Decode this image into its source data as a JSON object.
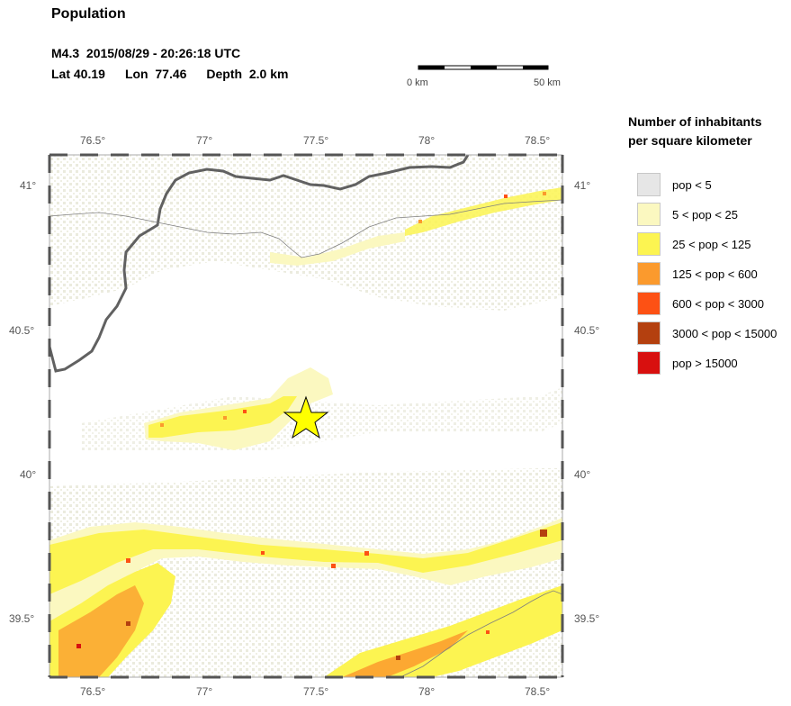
{
  "title": "Population",
  "event": {
    "magnitude": "M4.3",
    "datetime": "2015/08/29 - 20:26:18 UTC",
    "lat": "Lat 40.19",
    "lon": "Lon  77.46",
    "depth": "Depth  2.0 km"
  },
  "scale_bar": {
    "start_label": "0 km",
    "end_label": "50 km"
  },
  "legend": {
    "title_line1": "Number of inhabitants",
    "title_line2": "per square kilometer",
    "items": [
      {
        "label": "pop < 5",
        "color": "#e6e6e6"
      },
      {
        "label": "5 < pop < 25",
        "color": "#fbf8c0"
      },
      {
        "label": "25 < pop < 125",
        "color": "#fcf451"
      },
      {
        "label": "125 < pop < 600",
        "color": "#fb9a2d"
      },
      {
        "label": "600 < pop < 3000",
        "color": "#fd5114"
      },
      {
        "label": "3000 < pop < 15000",
        "color": "#b4400f"
      },
      {
        "label": "pop > 15000",
        "color": "#d8100f"
      }
    ]
  },
  "axes": {
    "top_labels": [
      "76.5°",
      "77°",
      "77.5°",
      "78°",
      "78.5°"
    ],
    "bottom_labels": [
      "76.5°",
      "77°",
      "77.5°",
      "78°",
      "78.5°"
    ],
    "left_labels": [
      "41°",
      "40.5°",
      "40°",
      "39.5°"
    ],
    "right_labels": [
      "41°",
      "40.5°",
      "40°",
      "39.5°"
    ]
  },
  "epicenter": {
    "lat": 40.19,
    "lon": 77.46,
    "marker_color": "#ffff00"
  }
}
